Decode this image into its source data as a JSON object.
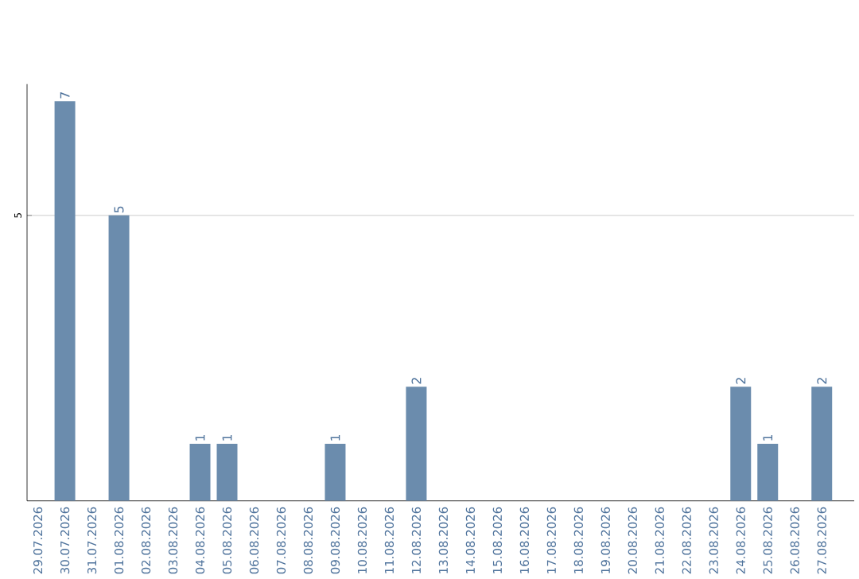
{
  "chart_data": {
    "type": "bar",
    "categories": [
      "29.07.2026",
      "30.07.2026",
      "31.07.2026",
      "01.08.2026",
      "02.08.2026",
      "03.08.2026",
      "04.08.2026",
      "05.08.2026",
      "06.08.2026",
      "07.08.2026",
      "08.08.2026",
      "09.08.2026",
      "10.08.2026",
      "11.08.2026",
      "12.08.2026",
      "13.08.2026",
      "14.08.2026",
      "15.08.2026",
      "16.08.2026",
      "17.08.2026",
      "18.08.2026",
      "19.08.2026",
      "20.08.2026",
      "21.08.2026",
      "22.08.2026",
      "23.08.2026",
      "24.08.2026",
      "25.08.2026",
      "26.08.2026",
      "27.08.2026"
    ],
    "values": [
      0,
      7,
      0,
      5,
      0,
      0,
      1,
      1,
      0,
      0,
      0,
      1,
      0,
      0,
      2,
      0,
      0,
      0,
      0,
      0,
      0,
      0,
      0,
      0,
      0,
      0,
      2,
      1,
      0,
      2
    ],
    "value_labels": [
      null,
      "7",
      null,
      "5",
      null,
      null,
      "1",
      "1",
      null,
      null,
      null,
      "1",
      null,
      null,
      "2",
      null,
      null,
      null,
      null,
      null,
      null,
      null,
      null,
      null,
      null,
      null,
      "2",
      "1",
      null,
      "2"
    ],
    "color": "#6b8cad",
    "ylim": [
      0,
      7.3
    ],
    "yticks": [
      5
    ],
    "grid": "y"
  }
}
